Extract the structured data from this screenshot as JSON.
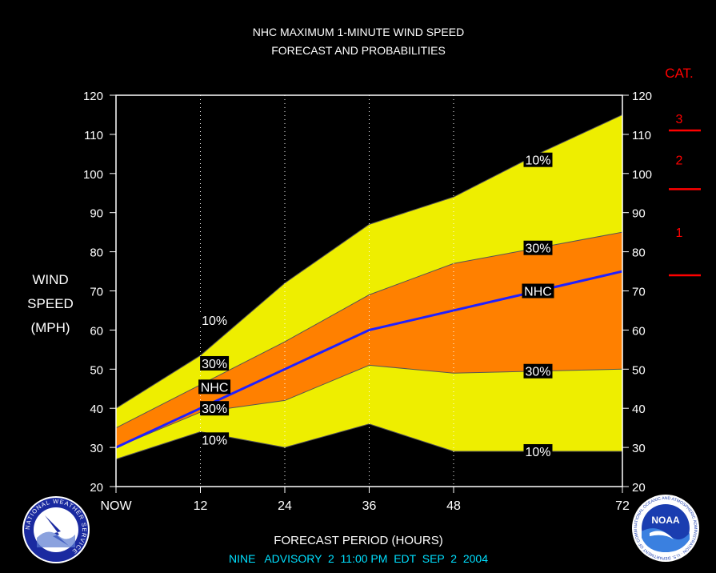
{
  "chart_data": {
    "type": "area",
    "title": "NHC MAXIMUM 1-MINUTE WIND SPEED",
    "subtitle": "FORECAST AND PROBABILITIES",
    "ylabel": [
      "WIND",
      "SPEED",
      "(MPH)"
    ],
    "xlabel": "FORECAST PERIOD (HOURS)",
    "footer": "NINE   ADVISORY  2  11:00 PM  EDT  SEP  2  2004",
    "x_ticks": [
      {
        "label": "NOW",
        "value": 0
      },
      {
        "label": "12",
        "value": 12
      },
      {
        "label": "24",
        "value": 24
      },
      {
        "label": "36",
        "value": 36
      },
      {
        "label": "48",
        "value": 48
      },
      {
        "label": "72",
        "value": 72
      }
    ],
    "xlim": [
      0,
      72
    ],
    "ylim": [
      20,
      120
    ],
    "y_ticks": [
      20,
      30,
      40,
      50,
      60,
      70,
      80,
      90,
      100,
      110,
      120
    ],
    "x": [
      0,
      12,
      24,
      36,
      48,
      60,
      72
    ],
    "series": [
      {
        "name": "10%",
        "values": [
          40,
          53.5,
          72,
          87,
          94,
          105,
          115
        ]
      },
      {
        "name": "30%",
        "values": [
          35,
          46,
          57,
          69,
          77,
          81,
          85
        ]
      },
      {
        "name": "NHC",
        "values": [
          30,
          40,
          50,
          60,
          65,
          70,
          75
        ]
      },
      {
        "name": "30%",
        "values": [
          30,
          39,
          42,
          51,
          49,
          49.5,
          50
        ]
      },
      {
        "name": "10%",
        "values": [
          27,
          34,
          30,
          36,
          29,
          29,
          29
        ]
      }
    ],
    "band_labels": [
      {
        "text": "10%",
        "x": 14,
        "y": 62.5
      },
      {
        "text": "30%",
        "x": 14,
        "y": 51.5
      },
      {
        "text": "NHC",
        "x": 14,
        "y": 45.5
      },
      {
        "text": "30%",
        "x": 14,
        "y": 40
      },
      {
        "text": "10%",
        "x": 14,
        "y": 32
      },
      {
        "text": "10%",
        "x": 60,
        "y": 103.5
      },
      {
        "text": "30%",
        "x": 60,
        "y": 81
      },
      {
        "text": "NHC",
        "x": 60,
        "y": 70
      },
      {
        "text": "30%",
        "x": 60,
        "y": 49.5
      },
      {
        "text": "10%",
        "x": 60,
        "y": 29
      }
    ],
    "category_scale": {
      "title": "CAT.",
      "categories": [
        {
          "label": "3",
          "threshold": 111
        },
        {
          "label": "2",
          "threshold": 96
        },
        {
          "label": "1",
          "threshold": 74
        }
      ]
    },
    "colors": {
      "outer_band": "#eeee00",
      "inner_band": "#ff8000",
      "nhc_line": "#2020ff",
      "category": "#ff0000",
      "footer_text": "#00e0ff",
      "grid": "#ffffff",
      "background": "#000000"
    },
    "logos": {
      "left": "NATIONAL WEATHER SERVICE",
      "right_center": "NOAA",
      "right_ring": "NATIONAL OCEANIC AND ATMOSPHERIC ADMINISTRATION · U.S. DEPARTMENT OF COMMERCE"
    },
    "grid": "vertical-dotted",
    "legend": "none"
  }
}
